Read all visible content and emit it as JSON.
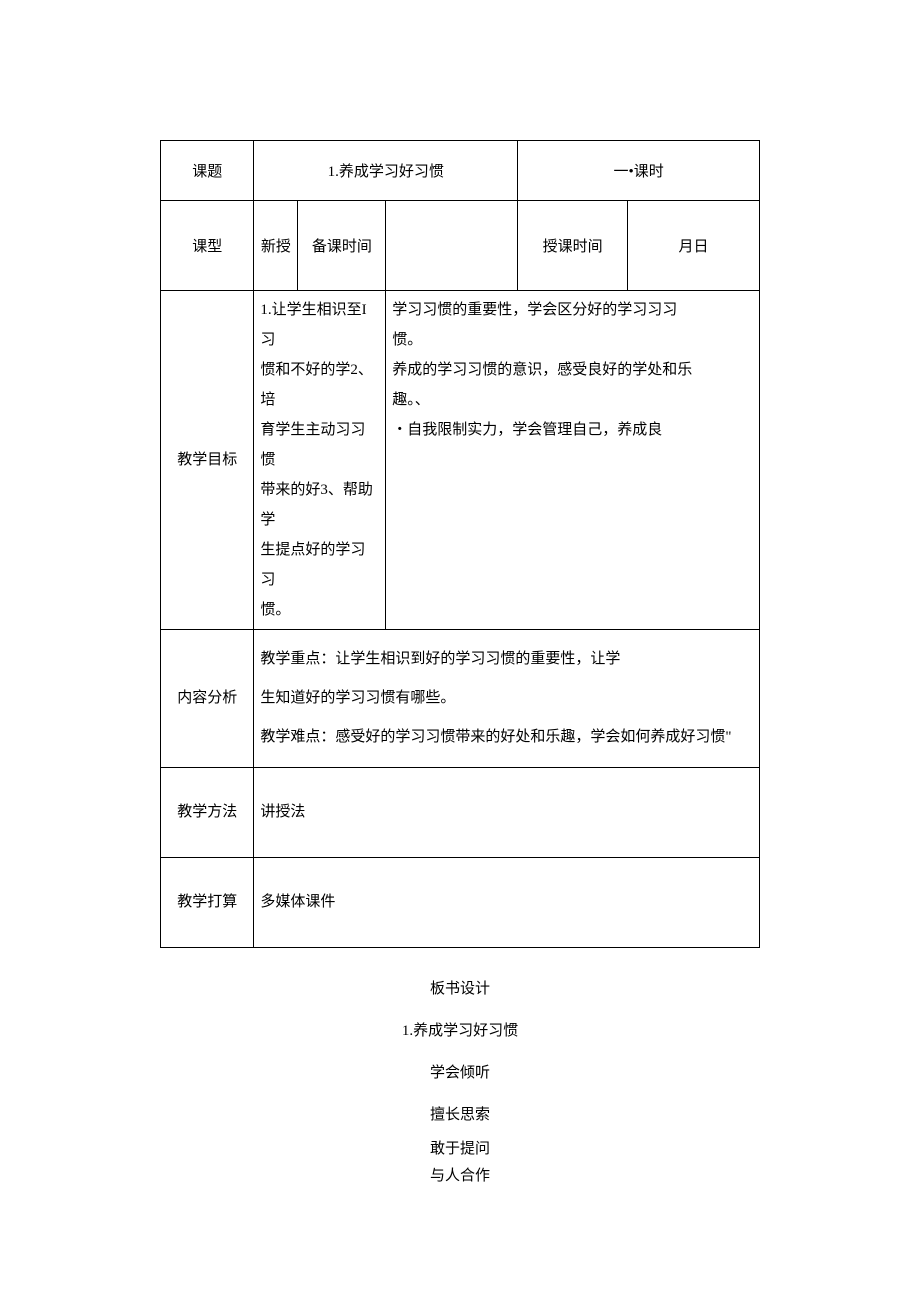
{
  "row1": {
    "topic_label": "课题",
    "topic_value": "1.养成学习好习惯",
    "period": "一•课时"
  },
  "row2": {
    "type_label": "课型",
    "type_value": "新授",
    "prep_label": "备课时间",
    "prep_value": "",
    "teach_label": "授课时间",
    "teach_value": "月日"
  },
  "goals": {
    "label": "教学目标",
    "left": "1.让学生相识至I习\n惯和不好的学2、培\n育学生主动习习惯\n带来的好3、帮助学\n生提点好的学习习\n惯。",
    "right": "学习习惯的重要性，学会区分好的学习习习\n惯。\n养成的学习习惯的意识，感受良好的学处和乐\n趣。、\n・自我限制实力，学会管理自己，养成良"
  },
  "analysis": {
    "label": "内容分析",
    "content": "教学重点：让学生相识到好的学习习惯的重要性，让学\n生知道好的学习习惯有哪些。\n教学难点：感受好的学习习惯带来的好处和乐趣，学会如何养成好习惯\""
  },
  "method": {
    "label": "教学方法",
    "content": "讲授法"
  },
  "plan": {
    "label": "教学打算",
    "content": "多媒体课件"
  },
  "below": {
    "line1": "板书设计",
    "line2": "1.养成学习好习惯",
    "line3": "学会倾听",
    "line4": "擅长思索",
    "line5": "敢于提问",
    "line6": "与人合作"
  }
}
